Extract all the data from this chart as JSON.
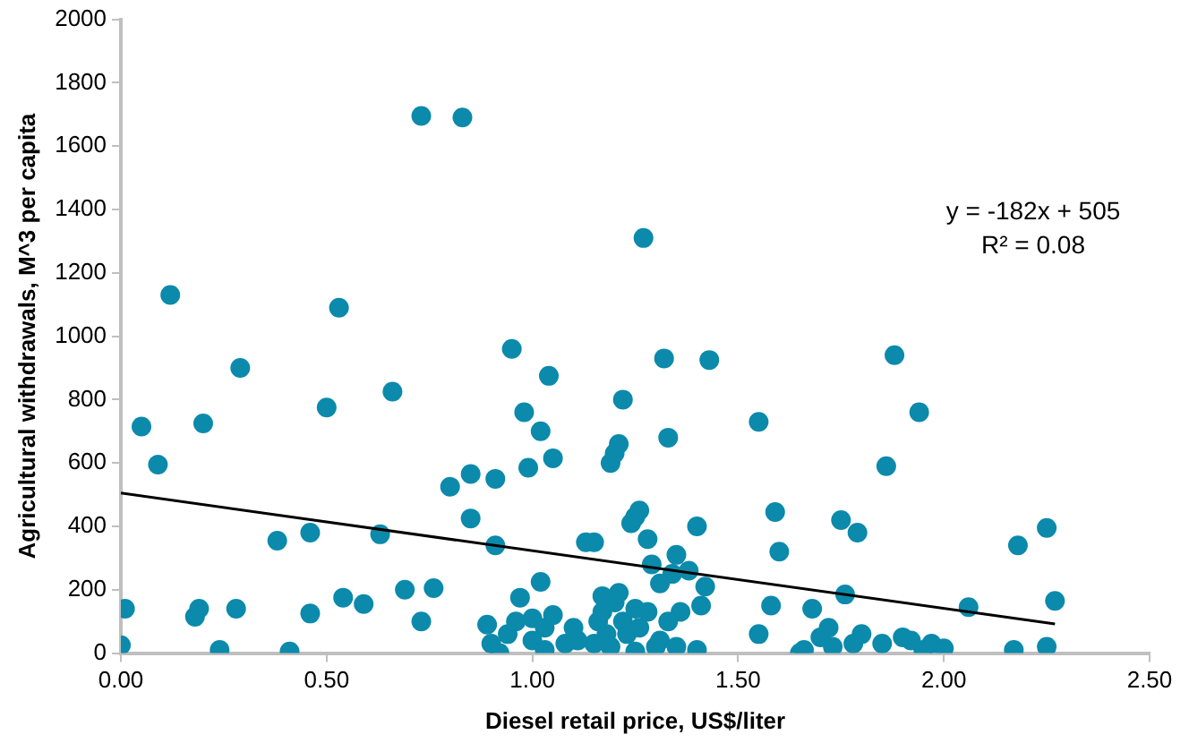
{
  "chart_data": {
    "type": "scatter",
    "xlabel": "Diesel retail price, US$/liter",
    "ylabel": "Agricultural withdrawals, M^3 per capita",
    "xlim": [
      0,
      2.5
    ],
    "xticks": [
      {
        "value": 0,
        "label": "0.00"
      },
      {
        "value": 0.5,
        "label": "0.50"
      },
      {
        "value": 1,
        "label": "1.00"
      },
      {
        "value": 1.5,
        "label": "1.50"
      },
      {
        "value": 2,
        "label": "2.00"
      },
      {
        "value": 2.5,
        "label": "2.50"
      }
    ],
    "ylim": [
      0,
      2000
    ],
    "yticks": [
      0,
      200,
      400,
      600,
      800,
      1000,
      1200,
      1400,
      1600,
      1800,
      2000
    ],
    "grid": false,
    "legend": false,
    "annotations": [
      "y = -182x + 505",
      "R² = 0.08"
    ],
    "series": [
      {
        "color": "#0b8aab",
        "marker": "circle",
        "x": [
          0,
          0.01,
          0.05,
          0.09,
          0.12,
          0.18,
          0.19,
          0.2,
          0.24,
          0.28,
          0.29,
          0.38,
          0.41,
          0.46,
          0.46,
          0.5,
          0.53,
          0.54,
          0.59,
          0.63,
          0.66,
          0.69,
          0.73,
          0.73,
          0.76,
          0.8,
          0.83,
          0.85,
          0.85,
          0.89,
          0.9,
          0.91,
          0.92,
          0.91,
          0.94,
          0.95,
          0.97,
          0.98,
          0.99,
          1,
          1.02,
          1.03,
          1.04,
          1.05,
          1,
          1.02,
          1.03,
          1.05,
          1.08,
          1.1,
          1.13,
          1.15,
          1.16,
          1.17,
          1.18,
          1.19,
          1.2,
          1.21,
          1.22,
          1.24,
          1.25,
          1.26,
          1.27,
          1.28,
          1.29,
          1.3,
          1.31,
          1.32,
          1.33,
          1.34,
          1.35,
          1.36,
          1.38,
          1.4,
          1.41,
          1.43,
          1.42,
          1.55,
          1.59,
          1.6,
          1.58,
          1.55,
          1.66,
          1.68,
          1.72,
          1.73,
          1.75,
          1.76,
          1.79,
          1.8,
          1.86,
          1.88,
          1.94,
          1.97,
          2.06,
          2.17,
          2.18,
          2.25,
          2.27,
          2.25,
          1.95,
          1.9,
          1.92,
          1.85,
          1.78,
          1.7,
          1.65,
          2,
          1.25,
          1.2,
          1.22,
          1.19,
          1.23,
          1.26,
          1.28,
          1.33,
          1.15,
          1.11,
          1.17,
          1.25,
          1.31,
          1.35,
          1.4,
          0.96,
          1.21
        ],
        "values": [
          25,
          140,
          715,
          595,
          1130,
          115,
          140,
          725,
          10,
          140,
          900,
          355,
          5,
          380,
          125,
          775,
          1090,
          175,
          155,
          375,
          825,
          200,
          1695,
          100,
          205,
          525,
          1690,
          565,
          425,
          90,
          30,
          340,
          0,
          550,
          60,
          960,
          175,
          760,
          585,
          110,
          700,
          80,
          875,
          615,
          40,
          225,
          10,
          120,
          30,
          80,
          350,
          350,
          100,
          130,
          60,
          600,
          630,
          660,
          800,
          410,
          430,
          450,
          1310,
          360,
          280,
          20,
          220,
          930,
          680,
          250,
          310,
          130,
          260,
          400,
          150,
          925,
          210,
          730,
          445,
          320,
          150,
          60,
          10,
          140,
          80,
          20,
          420,
          185,
          380,
          60,
          590,
          940,
          760,
          30,
          145,
          10,
          340,
          395,
          165,
          20,
          10,
          50,
          40,
          30,
          30,
          50,
          0,
          15,
          140,
          160,
          100,
          20,
          60,
          80,
          130,
          100,
          30,
          40,
          180,
          5,
          40,
          20,
          10,
          100,
          190
        ]
      },
      {
        "type": "line",
        "marker": "none",
        "color": "#000000",
        "x": [
          0,
          2.27
        ],
        "values": [
          505,
          92
        ]
      }
    ]
  }
}
